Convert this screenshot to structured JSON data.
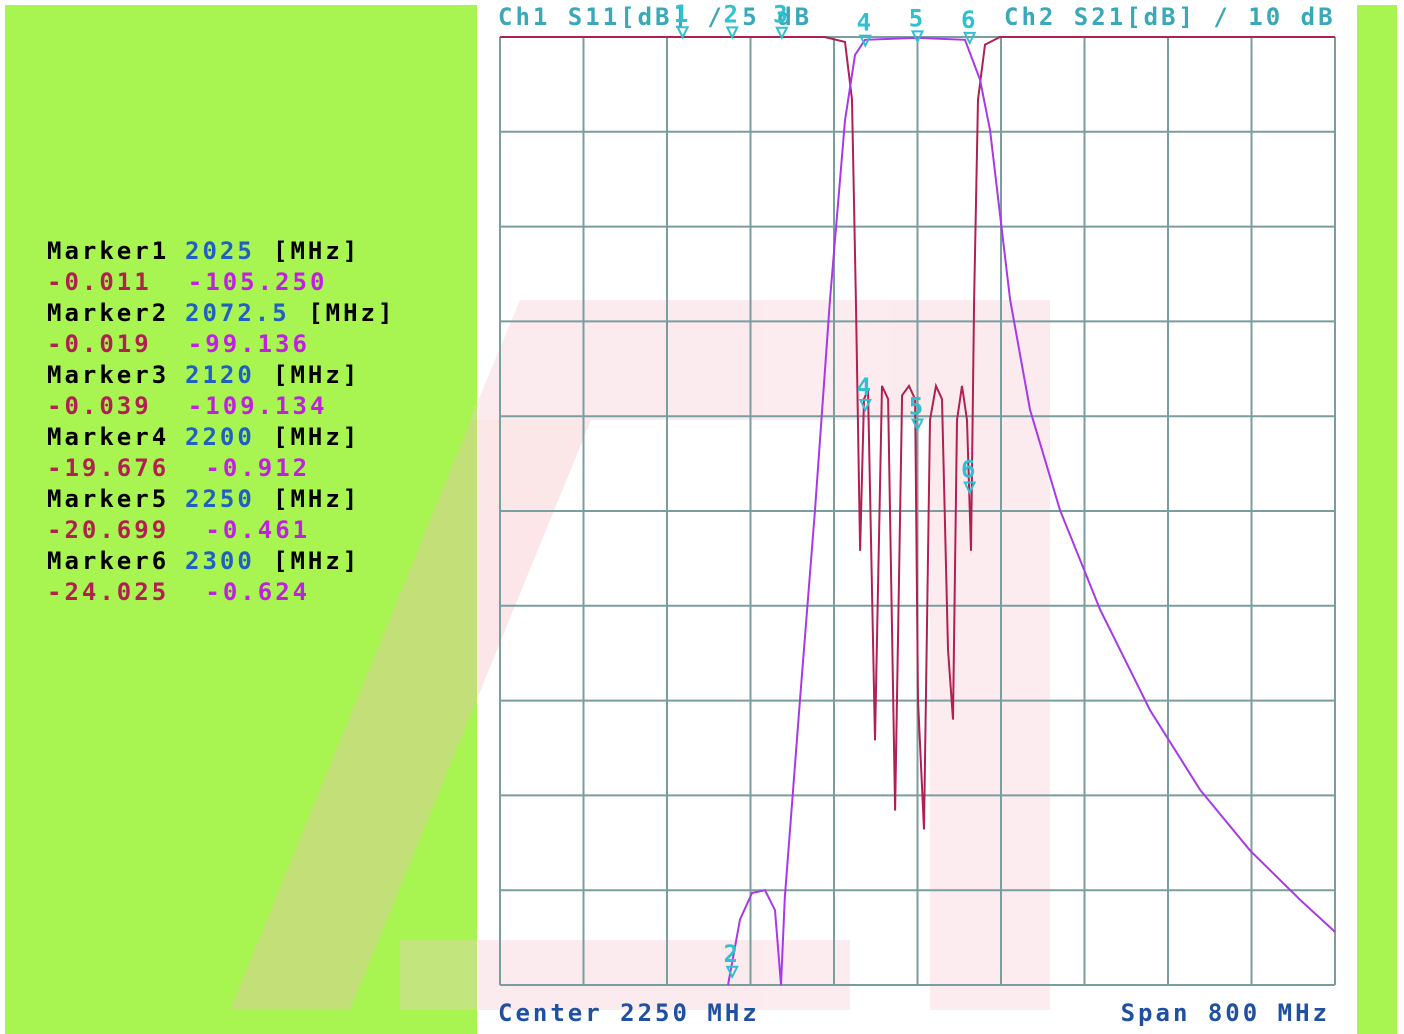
{
  "chart_data": {
    "type": "line",
    "header_left": "Ch1 S11[dB] / 5 dB",
    "header_right": "Ch2 S21[dB] / 10 dB",
    "center_label": "Center 2250 MHz",
    "span_label": "Span 800 MHz",
    "xlim": [
      1850,
      2650
    ],
    "xticks": [
      1850,
      1930,
      2010,
      2090,
      2170,
      2250,
      2330,
      2410,
      2490,
      2570,
      2650
    ],
    "ylim": [
      -50,
      0
    ],
    "yticks": [
      -50,
      -45,
      -40,
      -35,
      -30,
      -25,
      -20,
      -15,
      -10,
      -5,
      0
    ],
    "y2lim": [
      -100,
      0
    ],
    "grid": true,
    "series": [
      {
        "name": "S11",
        "color": "#b02050",
        "x": [
          1850,
          2161,
          2180.5,
          2187.2,
          2191,
          2195,
          2198.7,
          2202.6,
          2209.3,
          2216,
          2221.8,
          2228.5,
          2235.2,
          2241.9,
          2247.7,
          2250.5,
          2256.2,
          2262,
          2267.7,
          2273.5,
          2279.2,
          2284,
          2287.8,
          2292.6,
          2297.4,
          2301.3,
          2304.2,
          2308,
          2314.7,
          2329,
          2650
        ],
        "values": [
          0,
          0,
          -0.26,
          -3.3,
          -13.9,
          -27.1,
          -19.1,
          -18.6,
          -37.1,
          -18.4,
          -19.1,
          -40.8,
          -18.9,
          -18.4,
          -19.1,
          -35.0,
          -41.8,
          -20.2,
          -18.4,
          -19.1,
          -32.3,
          -36.0,
          -20.2,
          -18.4,
          -20.2,
          -27.1,
          -13.9,
          -3.3,
          -0.4,
          0,
          0
        ]
      },
      {
        "name": "S21",
        "color": "#a838e8",
        "axis": "y2",
        "x": [
          2068.4,
          2079.9,
          2091.4,
          2103.9,
          2113.5,
          2119.2,
          2122.9,
          2137.4,
          2151.8,
          2166.2,
          2180.5,
          2190.1,
          2199.7,
          2249.5,
          2295.5,
          2309.9,
          2319.5,
          2338.7,
          2357.8,
          2386.5,
          2424.9,
          2472.8,
          2520.7,
          2568.6,
          2616.5,
          2650
        ],
        "values": [
          -100,
          -93.1,
          -90.3,
          -90,
          -92.1,
          -100,
          -90.8,
          -69.9,
          -49.9,
          -27.7,
          -8.8,
          -1.9,
          -0.3,
          -0.1,
          -0.3,
          -4.5,
          -9.8,
          -27.7,
          -39.3,
          -49.9,
          -60.4,
          -71.0,
          -79.4,
          -85.8,
          -91.0,
          -94.4
        ]
      }
    ],
    "markers": [
      {
        "label": "Marker1",
        "num": "1",
        "freq": 2025,
        "unit": "[MHz]",
        "s11": -0.011,
        "s21": {
          "value": -105.25,
          "label": "-105.250"
        }
      },
      {
        "label": "Marker2",
        "num": "2",
        "freq": 2072.5,
        "unit": "[MHz]",
        "s11": -0.019,
        "s21": -99.136
      },
      {
        "label": "Marker3",
        "num": "3",
        "freq": 2120,
        "unit": "[MHz]",
        "s11": -0.039,
        "s21": -109.134
      },
      {
        "label": "Marker4",
        "num": "4",
        "freq": 2200,
        "unit": "[MHz]",
        "s11": -19.676,
        "s21": -0.912
      },
      {
        "label": "Marker5",
        "num": "5",
        "freq": 2250,
        "unit": "[MHz]",
        "s11": -20.699,
        "s21": -0.461
      },
      {
        "label": "Marker6",
        "num": "6",
        "freq": 2300,
        "unit": "[MHz]",
        "s11": -24.025,
        "s21": -0.624
      }
    ]
  }
}
